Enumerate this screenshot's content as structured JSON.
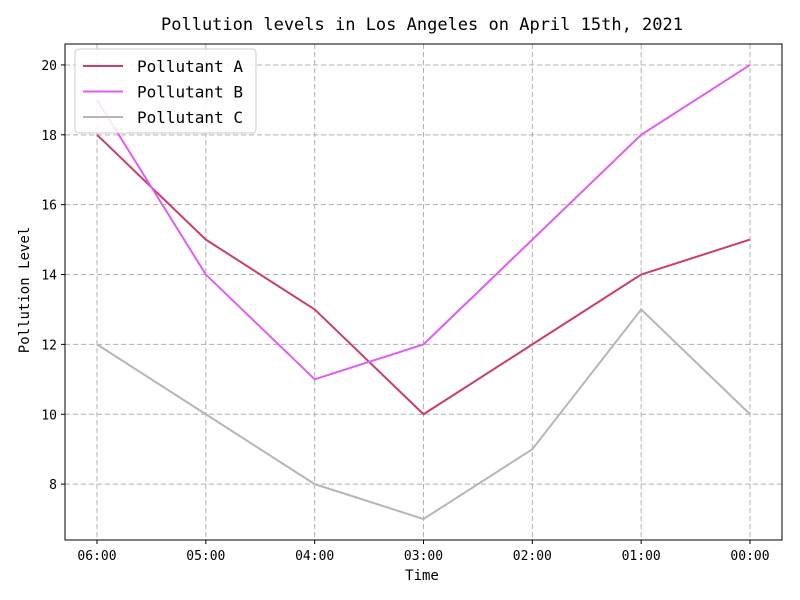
{
  "chart_data": {
    "type": "line",
    "title": "Pollution levels in Los Angeles on April 15th, 2021",
    "xlabel": "Time",
    "ylabel": "Pollution Level",
    "categories": [
      "06:00",
      "05:00",
      "04:00",
      "03:00",
      "02:00",
      "01:00",
      "00:00"
    ],
    "ylim": [
      6.4,
      20.6
    ],
    "yticks": [
      8,
      10,
      12,
      14,
      16,
      18,
      20
    ],
    "grid": true,
    "legend_position": "top-left",
    "series": [
      {
        "name": "Pollutant A",
        "color": "#cc3d6b",
        "values": [
          18,
          15,
          13,
          10,
          12,
          14,
          15
        ]
      },
      {
        "name": "Pollutant B",
        "color": "#e05ff0",
        "values": [
          19,
          14,
          11,
          12,
          15,
          18,
          20
        ]
      },
      {
        "name": "Pollutant C",
        "color": "#bab5b3",
        "values": [
          12,
          10,
          8,
          7,
          9,
          13,
          10
        ]
      }
    ]
  }
}
